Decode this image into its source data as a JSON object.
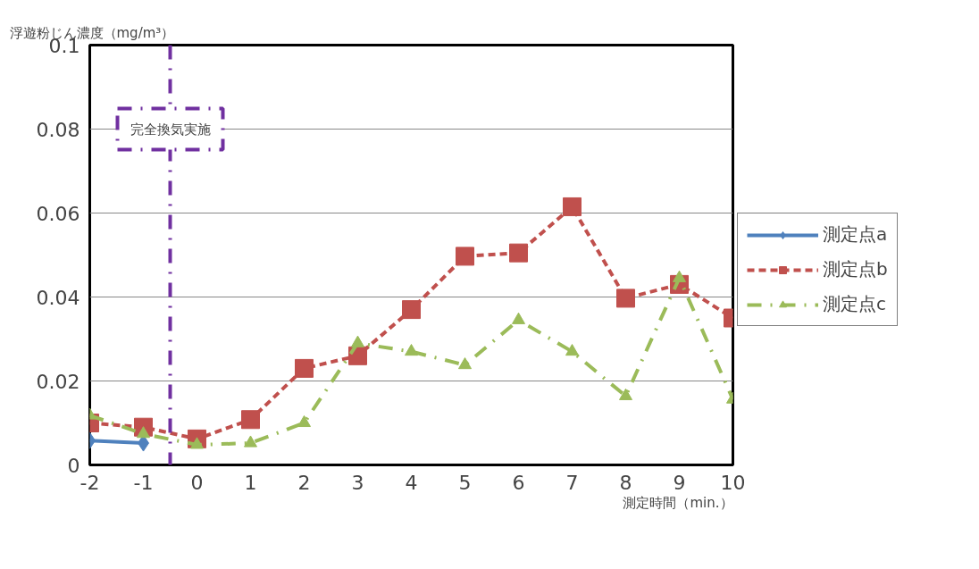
{
  "chart_data": {
    "type": "line",
    "ylabel": "浮遊粉じん濃度（mg/m³）",
    "xlabel": "測定時間（min.）",
    "x": [
      -2,
      -1,
      0,
      1,
      2,
      3,
      4,
      5,
      6,
      7,
      8,
      9,
      10
    ],
    "xlim": [
      -2,
      10
    ],
    "xticks": [
      -2,
      -1,
      0,
      1,
      2,
      3,
      4,
      5,
      6,
      7,
      8,
      9,
      10
    ],
    "ylim": [
      0,
      0.1
    ],
    "yticks": [
      0,
      0.02,
      0.04,
      0.06,
      0.08,
      0.1
    ],
    "grid": "y",
    "legend": "right",
    "series": [
      {
        "name": "測定点a",
        "color": "#4f81bd",
        "marker": "diamond",
        "line_style": "solid",
        "values": [
          0.0058,
          0.0052,
          null,
          null,
          null,
          null,
          null,
          null,
          null,
          null,
          null,
          null,
          null
        ]
      },
      {
        "name": "測定点b",
        "color": "#c0504d",
        "marker": "square",
        "line_style": "dashed",
        "values": [
          0.01,
          0.009,
          0.0062,
          0.0108,
          0.023,
          0.026,
          0.037,
          0.0497,
          0.0505,
          0.0615,
          0.0397,
          0.043,
          0.035
        ]
      },
      {
        "name": "測定点c",
        "color": "#9bbb59",
        "marker": "triangle",
        "line_style": "dashdot",
        "values": [
          0.0118,
          0.0074,
          0.0048,
          0.0052,
          0.01,
          0.029,
          0.027,
          0.0238,
          0.0345,
          0.027,
          0.0164,
          0.0445,
          0.0156
        ]
      }
    ],
    "ref_lines": [
      {
        "axis": "x",
        "value": -0.5,
        "label": "完全換気実施",
        "color": "#7030a0",
        "line_style": "dashdot"
      }
    ]
  }
}
